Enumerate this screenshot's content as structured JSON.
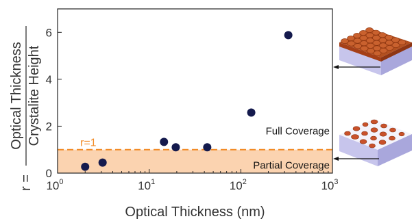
{
  "chart_data": {
    "type": "scatter",
    "title": "",
    "xlabel": "Optical Thickness (nm)",
    "ylabel_prefix": "r =",
    "ylabel_numerator": "Optical Thickness",
    "ylabel_denominator": "Crystalite Height",
    "xscale": "log",
    "xlim": [
      1,
      1000
    ],
    "ylim": [
      0,
      7
    ],
    "x_ticks": [
      {
        "base": "10",
        "exp": "0",
        "value": 1
      },
      {
        "base": "10",
        "exp": "1",
        "value": 10
      },
      {
        "base": "10",
        "exp": "2",
        "value": 100
      },
      {
        "base": "10",
        "exp": "3",
        "value": 1000
      }
    ],
    "y_ticks": [
      "0",
      "2",
      "4",
      "6"
    ],
    "y_tick_values": [
      0,
      2,
      4,
      6
    ],
    "points": [
      {
        "x": 2.0,
        "y": 0.27
      },
      {
        "x": 3.1,
        "y": 0.45
      },
      {
        "x": 14.5,
        "y": 1.33
      },
      {
        "x": 19.5,
        "y": 1.1
      },
      {
        "x": 43,
        "y": 1.1
      },
      {
        "x": 130,
        "y": 2.58
      },
      {
        "x": 330,
        "y": 5.88
      }
    ],
    "reference_line": {
      "y": 1,
      "label": "r=1",
      "style": "dashed"
    },
    "regions": [
      {
        "label": "Partial Coverage",
        "ymin": 0,
        "ymax": 1,
        "color": "#fbd3b0"
      },
      {
        "label": "Full Coverage",
        "ymin": 1,
        "ymax": 7,
        "color": "#ffffff"
      }
    ],
    "colors": {
      "points": "#141a4d",
      "reference_line": "#f28c28",
      "partial_region": "#fbd3b0",
      "slab_top": "#b04a1e",
      "slab_side": "#c5c4e8",
      "slab_islands": "#c9512a"
    },
    "insets": [
      {
        "name": "full-coverage-film",
        "points_to_y": 4.0
      },
      {
        "name": "partial-coverage-film",
        "points_to_y": 0.55
      }
    ]
  }
}
